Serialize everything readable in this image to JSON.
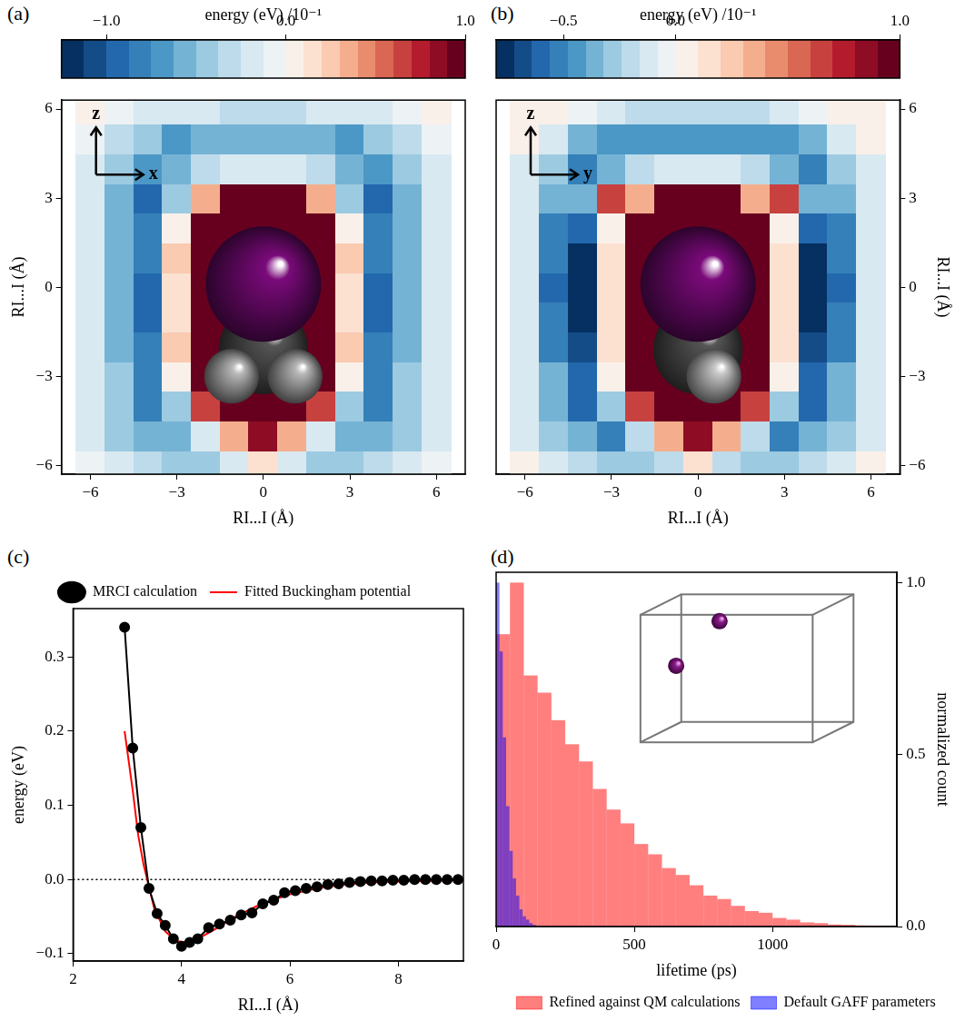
{
  "chart_data": [
    {
      "panel": "(a)",
      "type": "heatmap",
      "x_label": "RI...I (Å)",
      "y_label": "RI...I (Å)",
      "direction_labels": [
        "z",
        "x"
      ],
      "xlim": [
        -7,
        7
      ],
      "ylim": [
        -6.3,
        6.3
      ],
      "xticks": [
        {
          "value": -6,
          "label": "−6"
        },
        {
          "value": -3,
          "label": "−3"
        },
        0,
        3,
        6
      ],
      "yticks": [
        {
          "value": -6,
          "label": "−6"
        },
        {
          "value": -3,
          "label": "−3"
        },
        0,
        3,
        6
      ],
      "x": [
        -6,
        -5,
        -4,
        -3,
        -2,
        -1,
        0,
        1,
        2,
        3,
        4,
        5,
        6
      ],
      "y": [
        -6,
        -5,
        -4,
        -3,
        -2,
        -1,
        0,
        1,
        2,
        3,
        4,
        5,
        6
      ],
      "cells": [
        [
          -0.1,
          -0.2,
          -0.3,
          -0.4,
          -0.4,
          -0.2,
          0.1,
          -0.2,
          -0.4,
          -0.4,
          -0.3,
          -0.2,
          -0.1
        ],
        [
          -0.15,
          -0.4,
          -0.6,
          -0.6,
          -0.2,
          0.3,
          0.8,
          0.3,
          -0.2,
          -0.6,
          -0.6,
          -0.4,
          -0.15
        ],
        [
          -0.2,
          -0.5,
          -0.8,
          -0.4,
          0.6,
          1,
          1,
          1,
          0.6,
          -0.4,
          -0.8,
          -0.5,
          -0.2
        ],
        [
          -0.2,
          -0.5,
          -0.8,
          0,
          1,
          1,
          1,
          1,
          1,
          0,
          -0.8,
          -0.5,
          -0.2
        ],
        [
          -0.2,
          -0.6,
          -0.8,
          0.2,
          1,
          1,
          1,
          1,
          1,
          0.2,
          -0.8,
          -0.6,
          -0.2
        ],
        [
          -0.2,
          -0.6,
          -0.9,
          0.1,
          1,
          1,
          1,
          1,
          1,
          0.1,
          -0.9,
          -0.6,
          -0.2
        ],
        [
          -0.2,
          -0.6,
          -0.9,
          0.1,
          1,
          1,
          1,
          1,
          1,
          0.1,
          -0.9,
          -0.6,
          -0.2
        ],
        [
          -0.2,
          -0.6,
          -0.8,
          0.2,
          1,
          1,
          1,
          1,
          1,
          0.2,
          -0.8,
          -0.6,
          -0.2
        ],
        [
          -0.2,
          -0.6,
          -0.8,
          0,
          1,
          1,
          1,
          1,
          1,
          0,
          -0.8,
          -0.6,
          -0.2
        ],
        [
          -0.2,
          -0.6,
          -0.9,
          -0.4,
          0.3,
          1,
          1,
          1,
          0.3,
          -0.4,
          -0.9,
          -0.6,
          -0.2
        ],
        [
          -0.15,
          -0.4,
          -0.7,
          -0.6,
          -0.3,
          -0.2,
          -0.2,
          -0.2,
          -0.3,
          -0.6,
          -0.7,
          -0.4,
          -0.15
        ],
        [
          -0.1,
          -0.3,
          -0.5,
          -0.7,
          -0.6,
          -0.6,
          -0.6,
          -0.6,
          -0.6,
          -0.7,
          -0.5,
          -0.3,
          -0.1
        ],
        [
          0.05,
          -0.05,
          -0.15,
          -0.2,
          -0.25,
          -0.3,
          -0.3,
          -0.3,
          -0.25,
          -0.2,
          -0.15,
          -0.05,
          0.05
        ]
      ],
      "atoms": [
        {
          "x": 0,
          "z": -2.1,
          "r": 1.55,
          "color": "#555555"
        },
        {
          "x": -1.1,
          "z": -3.0,
          "r": 0.95,
          "color": "#b8b8b8"
        },
        {
          "x": 1.1,
          "z": -3.0,
          "r": 0.95,
          "color": "#b8b8b8"
        },
        {
          "x": 0,
          "z": 0.1,
          "r": 2.0,
          "color": "#7a0a7a"
        }
      ],
      "colorbar": {
        "title": "energy (eV) /10⁻¹",
        "range": [
          -1.25,
          1
        ],
        "ticks": [
          {
            "value": -1,
            "label": "−1.0"
          },
          {
            "value": 0,
            "label": "0.0"
          },
          {
            "value": 1,
            "label": "1.0"
          }
        ]
      }
    },
    {
      "panel": "(b)",
      "type": "heatmap",
      "x_label": "RI...I (Å)",
      "y_label": "RI...I (Å)",
      "direction_labels": [
        "z",
        "y"
      ],
      "xlim": [
        -7,
        7
      ],
      "ylim": [
        -6.3,
        6.3
      ],
      "xticks": [
        {
          "value": -6,
          "label": "−6"
        },
        {
          "value": -3,
          "label": "−3"
        },
        0,
        3,
        6
      ],
      "yticks": [
        {
          "value": -6,
          "label": "−6"
        },
        {
          "value": -3,
          "label": "−3"
        },
        0,
        3,
        6
      ],
      "x": [
        -6,
        -5,
        -4,
        -3,
        -2,
        -1,
        0,
        1,
        2,
        3,
        4,
        5,
        6
      ],
      "y": [
        -6,
        -5,
        -4,
        -3,
        -2,
        -1,
        0,
        1,
        2,
        3,
        4,
        5,
        6
      ],
      "cells": [
        [
          0.05,
          -0.1,
          -0.2,
          -0.3,
          -0.3,
          -0.2,
          0.1,
          -0.2,
          -0.3,
          -0.3,
          -0.2,
          -0.1,
          0.05
        ],
        [
          -0.1,
          -0.3,
          -0.4,
          -0.5,
          -0.2,
          0.3,
          0.8,
          0.3,
          -0.2,
          -0.5,
          -0.4,
          -0.3,
          -0.1
        ],
        [
          -0.1,
          -0.4,
          -0.6,
          -0.3,
          0.6,
          1,
          1,
          1,
          0.6,
          -0.3,
          -0.6,
          -0.4,
          -0.1
        ],
        [
          -0.1,
          -0.4,
          -0.6,
          0,
          1,
          1,
          1,
          1,
          1,
          0,
          -0.6,
          -0.4,
          -0.1
        ],
        [
          -0.15,
          -0.5,
          -0.7,
          0.1,
          1,
          1,
          1,
          1,
          1,
          0.1,
          -0.7,
          -0.5,
          -0.15
        ],
        [
          -0.15,
          -0.5,
          -0.75,
          0.1,
          1,
          1,
          1,
          1,
          1,
          0.1,
          -0.75,
          -0.5,
          -0.15
        ],
        [
          -0.15,
          -0.6,
          -0.8,
          0.1,
          1,
          1,
          1,
          1,
          1,
          0.1,
          -0.8,
          -0.6,
          -0.15
        ],
        [
          -0.15,
          -0.5,
          -0.75,
          0.1,
          1,
          1,
          1,
          1,
          1,
          0.1,
          -0.75,
          -0.5,
          -0.15
        ],
        [
          -0.15,
          -0.5,
          -0.6,
          0,
          1,
          1,
          1,
          1,
          1,
          0,
          -0.6,
          -0.5,
          -0.15
        ],
        [
          -0.1,
          -0.4,
          -0.4,
          0.6,
          0.3,
          1,
          1,
          1,
          0.3,
          0.6,
          -0.4,
          -0.4,
          -0.1
        ],
        [
          -0.1,
          -0.3,
          -0.5,
          -0.4,
          -0.2,
          -0.1,
          -0.1,
          -0.1,
          -0.2,
          -0.4,
          -0.5,
          -0.3,
          -0.1
        ],
        [
          0.05,
          -0.15,
          -0.35,
          -0.45,
          -0.45,
          -0.45,
          -0.45,
          -0.45,
          -0.45,
          -0.45,
          -0.35,
          -0.15,
          0.05
        ],
        [
          0.05,
          0.05,
          -0.05,
          -0.15,
          -0.2,
          -0.2,
          -0.2,
          -0.2,
          -0.2,
          -0.15,
          -0.05,
          0.05,
          0.05
        ]
      ],
      "atoms": [
        {
          "x": 0,
          "z": -2.1,
          "r": 1.55,
          "color": "#555555"
        },
        {
          "x": 0.55,
          "z": -3.0,
          "r": 0.95,
          "color": "#c8c8c8"
        },
        {
          "x": 0,
          "z": 0.1,
          "r": 2.0,
          "color": "#7a0a7a"
        }
      ],
      "colorbar": {
        "title": "energy (eV) /10⁻¹",
        "range": [
          -0.8,
          1
        ],
        "ticks": [
          {
            "value": -0.5,
            "label": "−0.5"
          },
          {
            "value": 0,
            "label": "0.0"
          },
          {
            "value": 1,
            "label": "1.0"
          }
        ]
      }
    },
    {
      "panel": "(c)",
      "type": "line",
      "x_label": "RI...I (Å)",
      "y_label": "energy (eV)",
      "xlim": [
        2,
        9.2
      ],
      "ylim": [
        -0.11,
        0.365
      ],
      "xticks": [
        2,
        4,
        6,
        8
      ],
      "yticks": [
        {
          "value": -0.1,
          "label": "−0.1"
        },
        {
          "value": 0,
          "label": "0.0"
        },
        0.1,
        0.2,
        0.3
      ],
      "hline": 0,
      "legend": "top",
      "series": [
        {
          "name": "MRCI calculation",
          "color": "#000000",
          "marker": "circle",
          "line_style": "solid",
          "x": [
            2.95,
            3.1,
            3.25,
            3.4,
            3.55,
            3.7,
            3.85,
            4.0,
            4.15,
            4.3,
            4.5,
            4.7,
            4.9,
            5.1,
            5.3,
            5.5,
            5.7,
            5.9,
            6.1,
            6.3,
            6.5,
            6.7,
            6.9,
            7.1,
            7.3,
            7.5,
            7.7,
            7.9,
            8.1,
            8.3,
            8.5,
            8.7,
            8.9,
            9.1
          ],
          "values": [
            0.34,
            0.177,
            0.07,
            -0.012,
            -0.046,
            -0.062,
            -0.08,
            -0.09,
            -0.085,
            -0.08,
            -0.065,
            -0.06,
            -0.055,
            -0.048,
            -0.045,
            -0.033,
            -0.028,
            -0.018,
            -0.015,
            -0.012,
            -0.01,
            -0.007,
            -0.006,
            -0.004,
            -0.003,
            -0.002,
            -0.002,
            -0.001,
            -0.001,
            0,
            0,
            0,
            0,
            0
          ]
        },
        {
          "name": "Fitted Buckingham potential",
          "color": "#ff0000",
          "marker": "none",
          "line_style": "solid",
          "x": [
            2.95,
            3.1,
            3.2,
            3.3,
            3.4,
            3.5,
            3.7,
            3.9,
            4.1,
            4.3,
            4.6,
            5.0,
            5.5,
            6.0,
            6.5,
            7.0,
            7.5,
            8.0,
            8.5,
            9.2
          ],
          "values": [
            0.2,
            0.12,
            0.06,
            0.02,
            -0.01,
            -0.04,
            -0.07,
            -0.083,
            -0.085,
            -0.08,
            -0.068,
            -0.05,
            -0.032,
            -0.02,
            -0.012,
            -0.007,
            -0.004,
            -0.003,
            -0.002,
            -0.001
          ]
        }
      ]
    },
    {
      "panel": "(d)",
      "type": "histogram",
      "x_label": "lifetime (ps)",
      "y_label": "normalized count",
      "xlim": [
        0,
        1450
      ],
      "ylim": [
        0,
        1.03
      ],
      "xticks": [
        0,
        500,
        1000
      ],
      "yticks": [
        {
          "value": 0,
          "label": "0.0"
        },
        0.5,
        {
          "value": 1,
          "label": "1.0"
        }
      ],
      "legend": "bottom",
      "series": [
        {
          "name": "Refined against QM calculations",
          "color": "#ff0000",
          "bins": [
            0,
            50,
            100,
            150,
            200,
            250,
            300,
            350,
            400,
            450,
            500,
            550,
            600,
            650,
            700,
            750,
            800,
            850,
            900,
            950,
            1000,
            1050,
            1100,
            1150,
            1200,
            1250,
            1300,
            1350,
            1400,
            1450
          ],
          "counts": [
            0.85,
            1.0,
            0.73,
            0.68,
            0.6,
            0.53,
            0.48,
            0.4,
            0.34,
            0.3,
            0.24,
            0.21,
            0.17,
            0.15,
            0.12,
            0.09,
            0.08,
            0.06,
            0.045,
            0.04,
            0.025,
            0.02,
            0.012,
            0.01,
            0.006,
            0.005,
            0.003,
            0.002,
            0.001
          ]
        },
        {
          "name": "Default GAFF parameters",
          "color": "#0000ff",
          "bins": [
            0,
            12,
            24,
            36,
            48,
            60,
            72,
            84,
            96,
            108,
            120,
            132,
            144,
            156
          ],
          "counts": [
            1.0,
            0.8,
            0.55,
            0.35,
            0.22,
            0.14,
            0.09,
            0.05,
            0.03,
            0.02,
            0.01,
            0.005,
            0.003
          ]
        }
      ]
    }
  ]
}
